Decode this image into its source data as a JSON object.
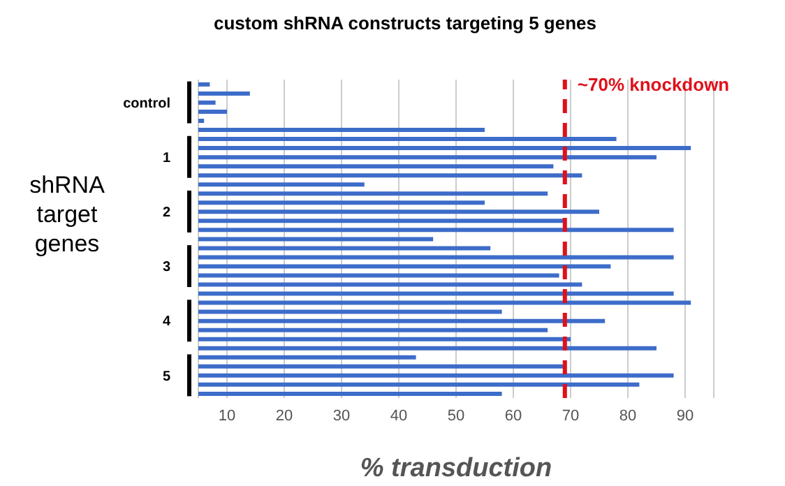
{
  "chart_data": {
    "type": "bar",
    "orientation": "horizontal",
    "title": "custom shRNA constructs targeting 5 genes",
    "xlabel": "% transduction",
    "ylabel": "shRNA target genes",
    "categories": [
      null,
      null,
      "control",
      null,
      null,
      null,
      null,
      null,
      "1",
      null,
      null,
      null,
      null,
      null,
      "2",
      null,
      null,
      null,
      null,
      null,
      "3",
      null,
      null,
      null,
      null,
      null,
      "4",
      null,
      null,
      null,
      null,
      null,
      "5",
      null,
      null
    ],
    "values": [
      7,
      14,
      8,
      10,
      6,
      55,
      78,
      91,
      85,
      67,
      72,
      34,
      66,
      55,
      75,
      69,
      88,
      46,
      56,
      88,
      77,
      68,
      72,
      88,
      91,
      58,
      76,
      66,
      70,
      85,
      43,
      69,
      88,
      82,
      58
    ],
    "color": "#3d6cc9",
    "xlim": [
      5,
      95
    ],
    "xticks": [
      10,
      20,
      30,
      40,
      50,
      60,
      70,
      80,
      90
    ],
    "grid": "x",
    "ref_lines": [
      {
        "axis": "x",
        "value": 69,
        "label": "~70% knockdown",
        "color": "#e0101a",
        "line_style": "dashed"
      }
    ]
  }
}
